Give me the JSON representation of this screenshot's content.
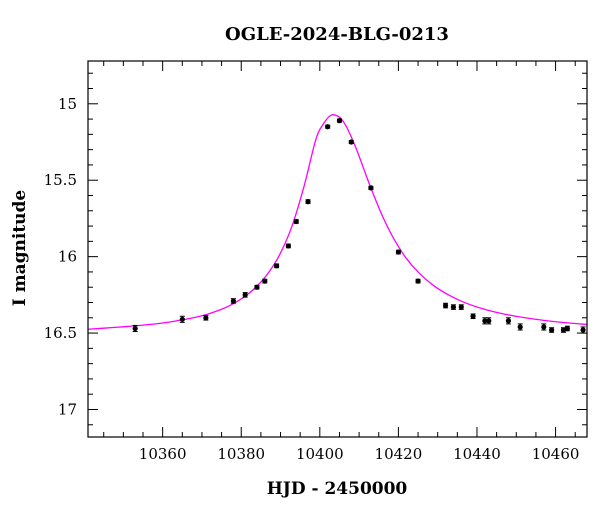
{
  "chart_data": {
    "type": "scatter",
    "title": "OGLE-2024-BLG-0213",
    "xlabel": "HJD - 2450000",
    "ylabel": "I magnitude",
    "xlim": [
      10341,
      10468
    ],
    "ylim": [
      17.18,
      14.72
    ],
    "y_inverted": true,
    "grid": false,
    "x_ticks": [
      10360,
      10380,
      10400,
      10420,
      10440,
      10460
    ],
    "x_tick_labels": [
      "10360",
      "10380",
      "10400",
      "10420",
      "10440",
      "10460"
    ],
    "y_ticks": [
      15,
      15.5,
      16,
      16.5,
      17
    ],
    "y_tick_labels": [
      "15",
      "15.5",
      "16",
      "16.5",
      "17"
    ],
    "colors": {
      "points": "#000000",
      "model": "#ff00ff",
      "frame": "#000000"
    },
    "series": [
      {
        "kind": "points",
        "x": [
          10353,
          10365,
          10371,
          10378,
          10381,
          10384,
          10386,
          10389,
          10392,
          10394,
          10397,
          10402,
          10405,
          10408,
          10413,
          10420,
          10425,
          10432,
          10434,
          10436,
          10439,
          10442,
          10443,
          10448,
          10451,
          10457,
          10459,
          10462,
          10463,
          10467
        ],
        "y": [
          16.47,
          16.41,
          16.4,
          16.29,
          16.25,
          16.2,
          16.16,
          16.06,
          15.93,
          15.77,
          15.64,
          15.15,
          15.11,
          15.25,
          15.55,
          15.97,
          16.16,
          16.32,
          16.33,
          16.33,
          16.39,
          16.42,
          16.42,
          16.42,
          16.46,
          16.46,
          16.48,
          16.48,
          16.47,
          16.48
        ],
        "err": [
          0.02,
          0.02,
          0.015,
          0.015,
          0.015,
          0.012,
          0.012,
          0.012,
          0.012,
          0.012,
          0.012,
          0.01,
          0.01,
          0.01,
          0.01,
          0.012,
          0.012,
          0.015,
          0.015,
          0.015,
          0.015,
          0.02,
          0.02,
          0.02,
          0.02,
          0.02,
          0.015,
          0.015,
          0.015,
          0.02
        ]
      },
      {
        "kind": "model",
        "x": [
          10341,
          10345,
          10350,
          10355,
          10360,
          10365,
          10370,
          10375,
          10378,
          10381,
          10384,
          10387,
          10390,
          10393,
          10396,
          10399,
          10401,
          10403,
          10405,
          10406,
          10407,
          10409,
          10411,
          10413,
          10416,
          10419,
          10422,
          10425,
          10429,
          10433,
          10437,
          10442,
          10447,
          10452,
          10457,
          10462,
          10468
        ],
        "y": [
          16.475,
          16.468,
          16.459,
          16.448,
          16.434,
          16.414,
          16.387,
          16.344,
          16.307,
          16.259,
          16.193,
          16.103,
          15.976,
          15.794,
          15.538,
          15.233,
          15.128,
          15.073,
          15.087,
          15.118,
          15.161,
          15.276,
          15.413,
          15.551,
          15.738,
          15.891,
          16.011,
          16.1,
          16.19,
          16.254,
          16.302,
          16.345,
          16.376,
          16.399,
          16.417,
          16.431,
          16.444
        ]
      }
    ]
  }
}
